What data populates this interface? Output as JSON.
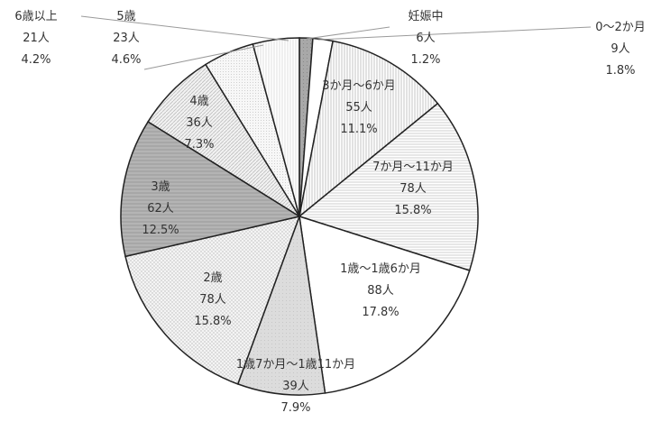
{
  "chart_data": {
    "type": "pie",
    "title": "",
    "legend": "none",
    "slices": [
      {
        "label": "妊娠中",
        "count": "6人",
        "pct": "1.2%",
        "value": 1.2,
        "fill": "pat-dark"
      },
      {
        "label": "0～2か月",
        "count": "9人",
        "pct": "1.8%",
        "value": 1.8,
        "fill": "pat-white"
      },
      {
        "label": "3か月～6か月",
        "count": "55人",
        "pct": "11.1%",
        "value": 11.1,
        "fill": "pat-vlines"
      },
      {
        "label": "7か月～11か月",
        "count": "78人",
        "pct": "15.8%",
        "value": 15.8,
        "fill": "pat-hlines"
      },
      {
        "label": "1歳～1歳6か月",
        "count": "88人",
        "pct": "17.8%",
        "value": 17.8,
        "fill": "pat-white"
      },
      {
        "label": "1歳7か月～1歳11か月",
        "count": "39人",
        "pct": "7.9%",
        "value": 7.9,
        "fill": "pat-gray"
      },
      {
        "label": "2歳",
        "count": "78人",
        "pct": "15.8%",
        "value": 15.8,
        "fill": "pat-dots"
      },
      {
        "label": "3歳",
        "count": "62人",
        "pct": "12.5%",
        "value": 12.5,
        "fill": "pat-darkgray"
      },
      {
        "label": "4歳",
        "count": "36人",
        "pct": "7.3%",
        "value": 7.3,
        "fill": "pat-diag"
      },
      {
        "label": "5歳",
        "count": "23人",
        "pct": "4.6%",
        "value": 4.6,
        "fill": "pat-fine"
      },
      {
        "label": "6歳以上",
        "count": "21人",
        "pct": "4.2%",
        "value": 4.2,
        "fill": "pat-vfine"
      }
    ]
  }
}
